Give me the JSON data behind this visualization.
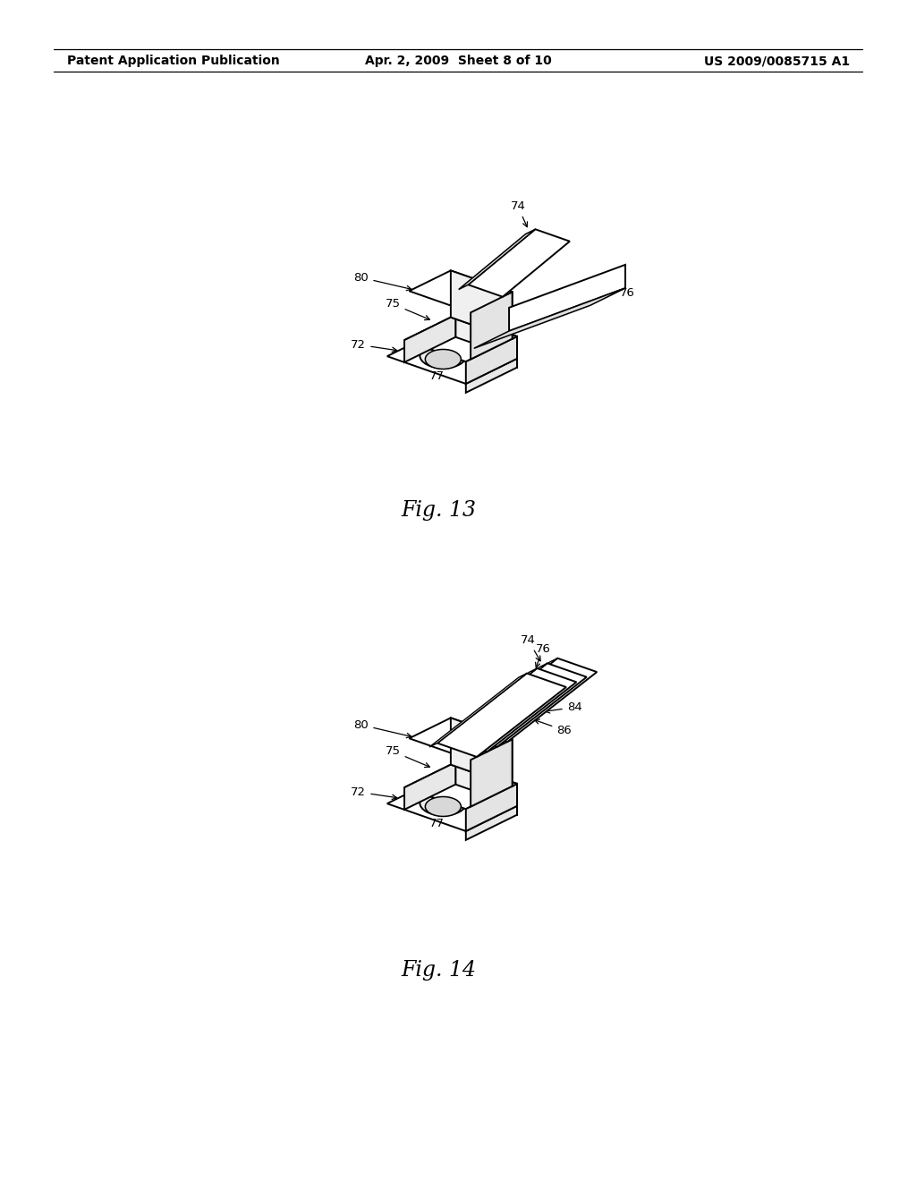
{
  "bg_color": "#ffffff",
  "line_color": "#000000",
  "header_left": "Patent Application Publication",
  "header_center": "Apr. 2, 2009  Sheet 8 of 10",
  "header_right": "US 2009/0085715 A1",
  "fig13_caption": "Fig. 13",
  "fig14_caption": "Fig. 14"
}
